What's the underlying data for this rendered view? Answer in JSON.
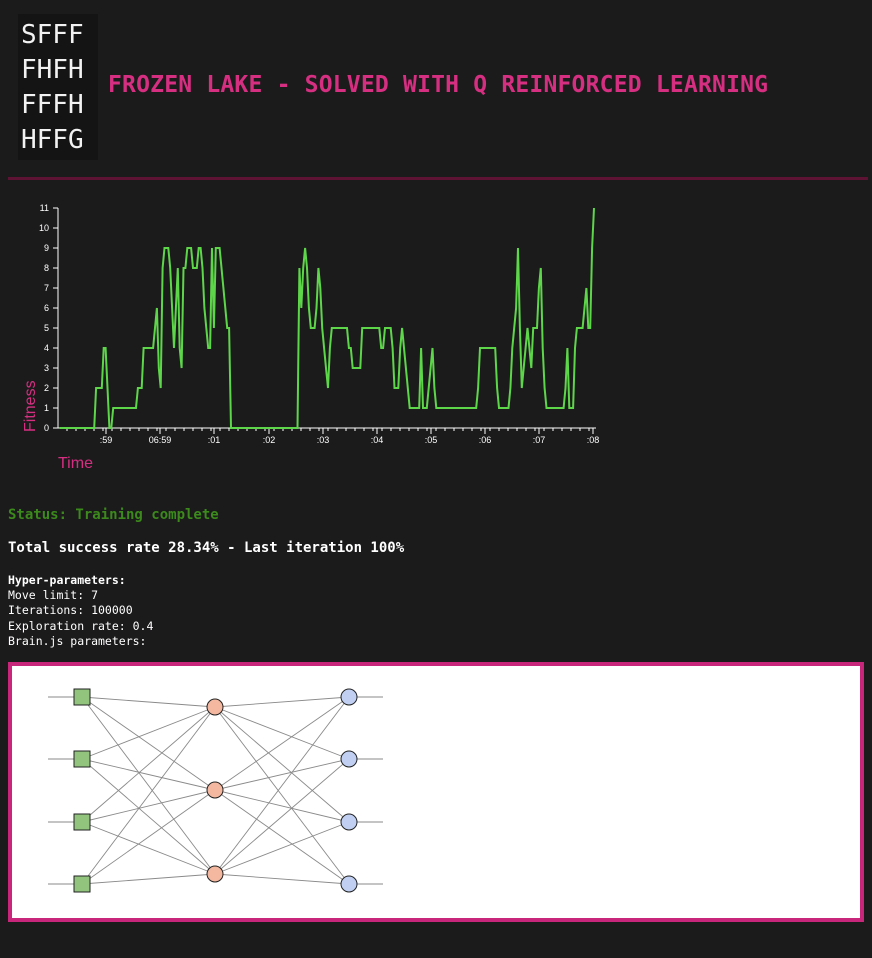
{
  "lake_grid": [
    "SFFF",
    "FHFH",
    "FFFH",
    "HFFG"
  ],
  "title": "FROZEN LAKE - SOLVED WITH Q REINFORCED LEARNING",
  "colors": {
    "background": "#1c1b1c",
    "accent": "#d62f82",
    "line": "#5ed64a",
    "status": "#3b8a1b",
    "input_node": "#93c47d",
    "hidden_node": "#f4b8a0",
    "output_node": "#c1d0f2"
  },
  "chart_data": {
    "type": "line",
    "xlabel": "Time",
    "ylabel": "Fitness",
    "ylim": [
      0,
      11
    ],
    "yticks": [
      0,
      1,
      2,
      3,
      4,
      5,
      6,
      7,
      8,
      9,
      10,
      11
    ],
    "xticks": [
      ":59",
      "06:59",
      ":01",
      ":02",
      ":03",
      ":04",
      ":05",
      ":06",
      ":07",
      ":08"
    ],
    "series": [
      {
        "values": [
          0,
          0,
          0,
          0,
          0,
          0,
          0,
          0,
          0,
          0,
          0,
          0,
          0,
          0,
          0,
          0,
          0,
          0,
          0,
          2,
          2,
          2,
          2,
          4,
          4,
          2,
          0,
          0,
          1,
          1,
          1,
          1,
          1,
          1,
          1,
          1,
          1,
          1,
          1,
          1,
          1,
          2,
          2,
          2,
          4,
          4,
          4,
          4,
          4,
          4,
          5,
          6,
          3,
          2,
          8,
          9,
          9,
          9,
          8,
          6,
          4,
          6,
          8,
          4,
          3,
          8,
          8,
          9,
          9,
          9,
          8,
          8,
          8,
          9,
          9,
          8,
          6,
          5,
          4,
          4,
          9,
          5,
          9,
          9,
          9,
          8,
          7,
          6,
          5,
          5,
          0,
          0,
          0,
          0,
          0,
          0,
          0,
          0,
          0,
          0,
          0,
          0,
          0,
          0,
          0,
          0,
          0,
          0,
          0,
          0,
          0,
          0,
          0,
          0,
          0,
          0,
          0,
          0,
          0,
          0,
          0,
          0,
          0,
          0,
          0,
          0,
          8,
          6,
          8,
          9,
          8,
          6,
          5,
          5,
          5,
          6,
          8,
          7,
          5,
          4,
          3,
          2,
          4,
          5,
          5,
          5,
          5,
          5,
          5,
          5,
          5,
          5,
          4,
          4,
          3,
          3,
          3,
          3,
          3,
          5,
          5,
          5,
          5,
          5,
          5,
          5,
          5,
          5,
          5,
          4,
          4,
          5,
          5,
          5,
          5,
          4,
          2,
          2,
          2,
          4,
          5,
          4,
          3,
          2,
          1,
          1,
          1,
          1,
          1,
          1,
          4,
          1,
          1,
          1,
          2,
          3,
          4,
          2,
          1,
          1,
          1,
          1,
          1,
          1,
          1,
          1,
          1,
          1,
          1,
          1,
          1,
          1,
          1,
          1,
          1,
          1,
          1,
          1,
          1,
          1,
          2,
          4,
          4,
          4,
          4,
          4,
          4,
          4,
          4,
          4,
          2,
          1,
          1,
          1,
          1,
          1,
          1,
          2,
          4,
          5,
          6,
          9,
          5,
          2,
          3,
          4,
          5,
          4,
          3,
          5,
          5,
          5,
          7,
          8,
          4,
          2,
          1,
          1,
          1,
          1,
          1,
          1,
          1,
          1,
          1,
          1,
          2,
          4,
          1,
          1,
          1,
          4,
          5,
          5,
          5,
          5,
          6,
          7,
          5,
          5,
          9,
          11
        ]
      }
    ]
  },
  "status_text": "Status: Training complete",
  "success_text": "Total success rate 28.34% - Last iteration 100%",
  "hyper": {
    "heading": "Hyper-parameters:",
    "move_limit": "Move limit: 7",
    "iterations": "Iterations: 100000",
    "exploration": "Exploration rate: 0.4",
    "brain": "Brain.js parameters:"
  },
  "network": {
    "layers": [
      4,
      3,
      4
    ]
  }
}
